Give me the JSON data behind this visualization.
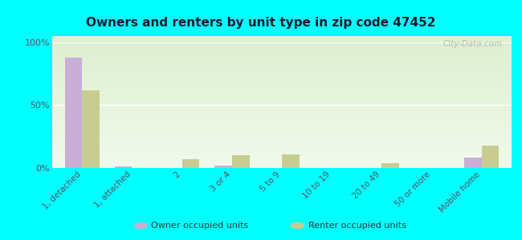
{
  "title": "Owners and renters by unit type in zip code 47452",
  "categories": [
    "1, detached",
    "1, attached",
    "2",
    "3 or 4",
    "5 to 9",
    "10 to 19",
    "20 to 49",
    "50 or more",
    "Mobile home"
  ],
  "owner_values": [
    88,
    1,
    0,
    2,
    0,
    0,
    0,
    0,
    8
  ],
  "renter_values": [
    62,
    0,
    7,
    10,
    11,
    0,
    4,
    0,
    18
  ],
  "owner_color": "#c9aed6",
  "renter_color": "#c8cc90",
  "background_color": "#00ffff",
  "plot_bg_top": "#ddefd0",
  "plot_bg_bottom": "#f0faec",
  "ylabel_ticks": [
    "0%",
    "50%",
    "100%"
  ],
  "ytick_values": [
    0,
    50,
    100
  ],
  "ylim": [
    0,
    105
  ],
  "bar_width": 0.35,
  "watermark": "City-Data.com",
  "legend_owner": "Owner occupied units",
  "legend_renter": "Renter occupied units",
  "title_color": "#1a1a2e",
  "tick_label_color": "#555566"
}
